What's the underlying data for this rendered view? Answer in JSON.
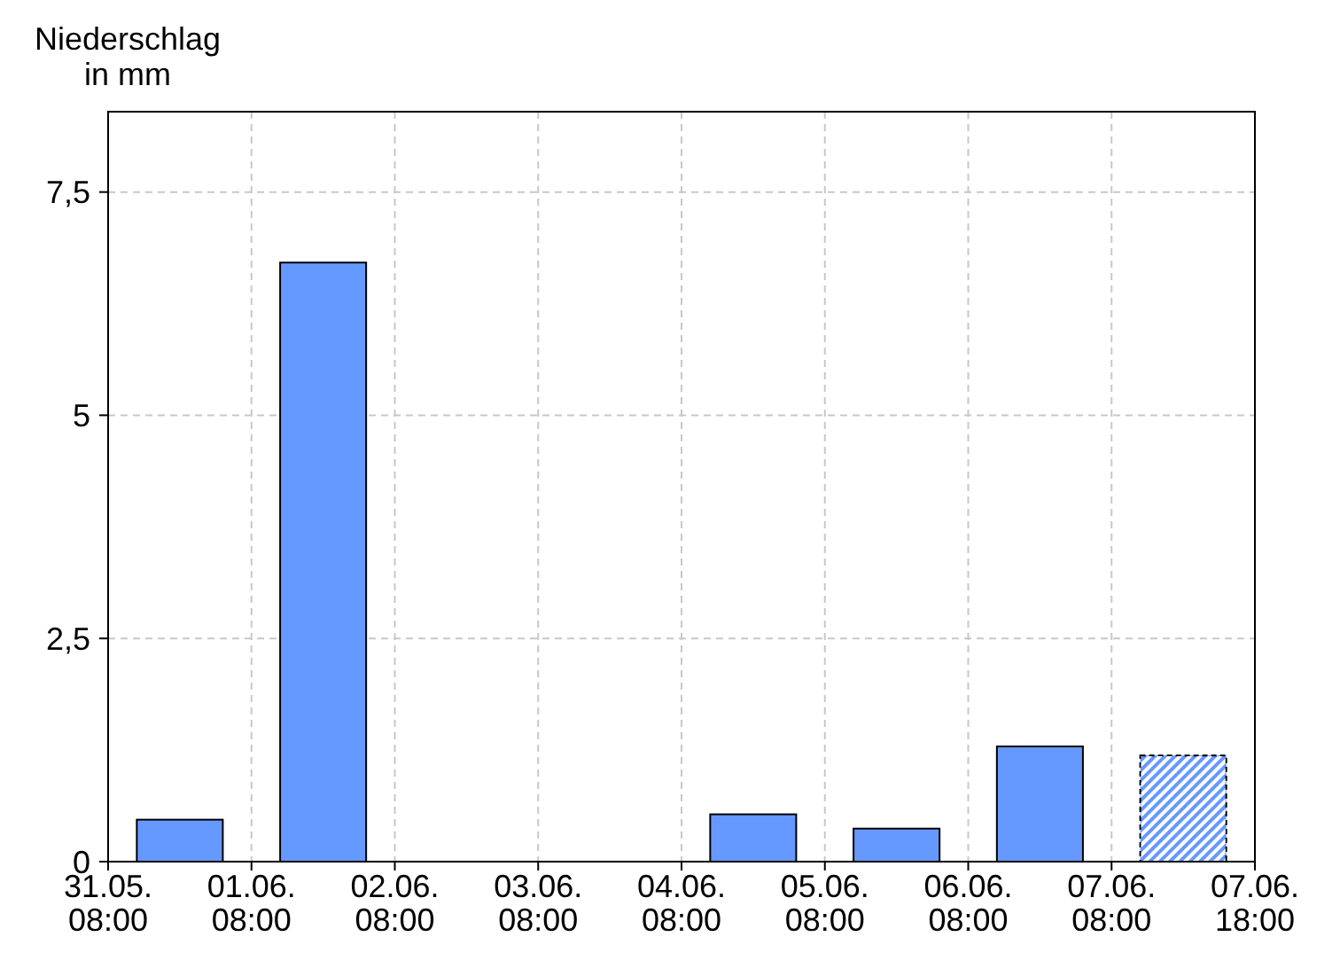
{
  "chart_data": {
    "type": "bar",
    "ylabel": "Niederschlag\nin mm",
    "categories": [
      null,
      null,
      null,
      null,
      null,
      null,
      null,
      null
    ],
    "series": [
      {
        "color": "#6699ff",
        "values": [
          0.47,
          6.71,
          0,
          0,
          0.53,
          0.37,
          1.29,
          null
        ]
      },
      {
        "color": "#6699ff",
        "values": [
          null,
          null,
          null,
          null,
          null,
          null,
          null,
          1.19
        ],
        "line_style": "dashed"
      }
    ],
    "annotations": [
      "31.05.\n08:00",
      "01.06.\n08:00",
      "02.06.\n08:00",
      "03.06.\n08:00",
      "04.06.\n08:00",
      "05.06.\n08:00",
      "06.06.\n08:00",
      "07.06.\n08:00",
      "07.06.\n18:00"
    ],
    "ylim": [
      0,
      8.4
    ],
    "yticks": [
      0,
      {
        "value": 2.5,
        "label": "2,5"
      },
      5,
      {
        "value": 7.5,
        "label": "7,5"
      }
    ],
    "grid": true
  }
}
